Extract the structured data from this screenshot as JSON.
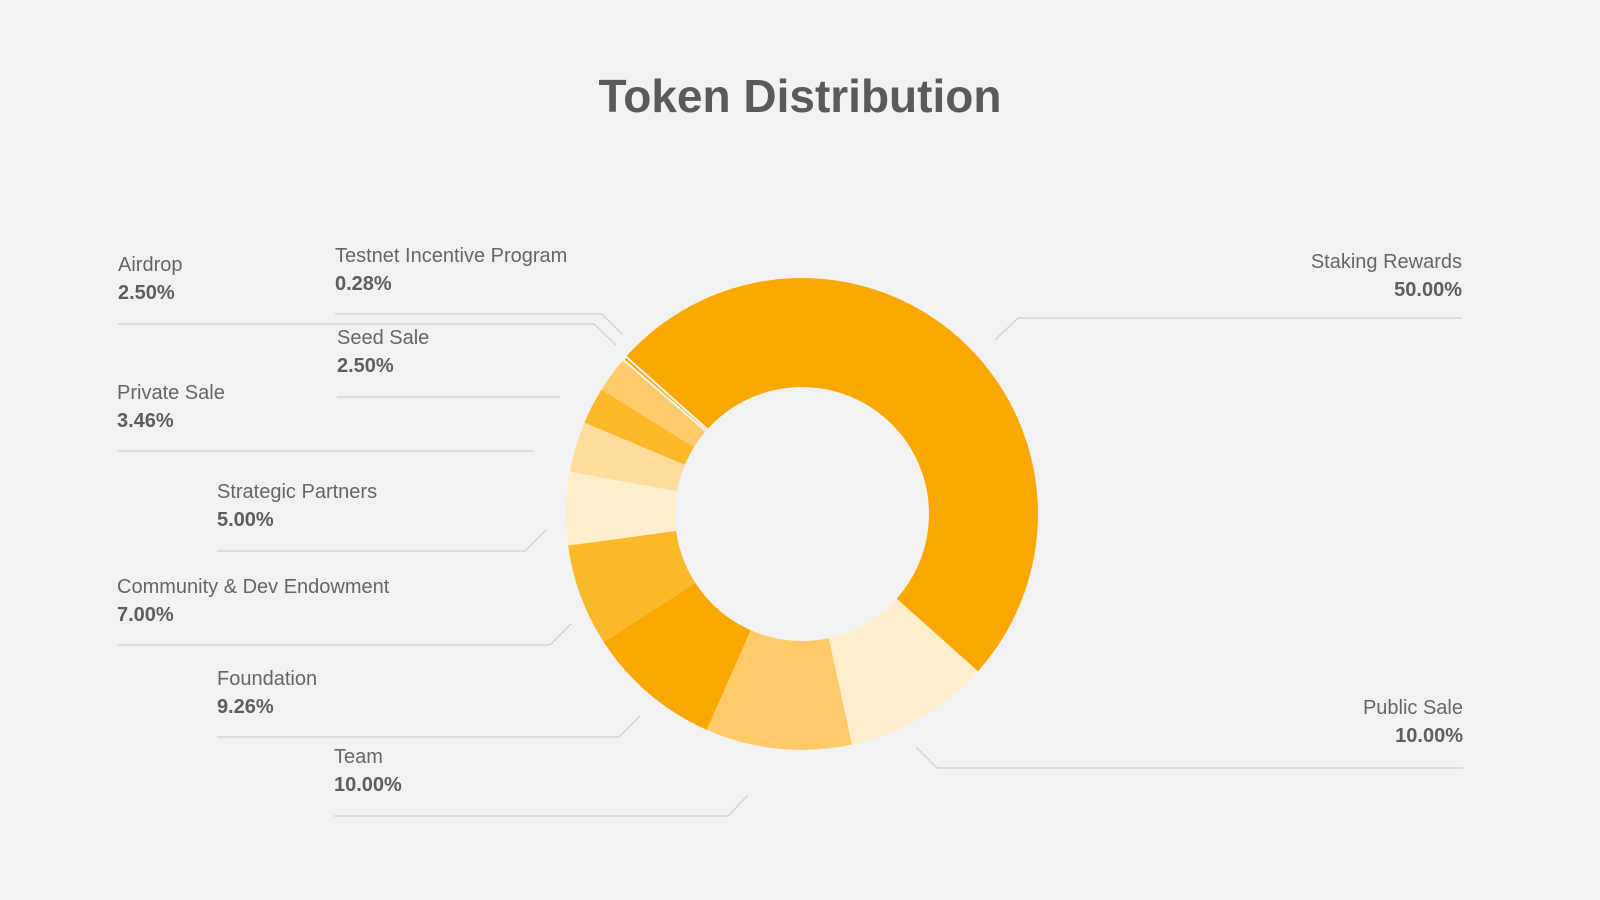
{
  "chart_data": {
    "type": "pie",
    "style": "donut",
    "title": "Token Distribution",
    "slices": [
      {
        "name": "Staking Rewards",
        "value_label": "50.00%",
        "value": 50.0,
        "color": "#FAA700"
      },
      {
        "name": "Public Sale",
        "value_label": "10.00%",
        "value": 10.0,
        "color": "#FFEDCC"
      },
      {
        "name": "Team",
        "value_label": "10.00%",
        "value": 10.0,
        "color": "#FDCB6A"
      },
      {
        "name": "Foundation",
        "value_label": "9.26%",
        "value": 9.26,
        "color": "#FAA700"
      },
      {
        "name": "Community & Dev Endowment",
        "value_label": "7.00%",
        "value": 7.0,
        "color": "#FBB829"
      },
      {
        "name": "Strategic Partners",
        "value_label": "5.00%",
        "value": 5.0,
        "color": "#FFEDCC"
      },
      {
        "name": "Private Sale",
        "value_label": "3.46%",
        "value": 3.46,
        "color": "#FEDC9B"
      },
      {
        "name": "Seed Sale",
        "value_label": "2.50%",
        "value": 2.5,
        "color": "#FBB829"
      },
      {
        "name": "Airdrop",
        "value_label": "2.50%",
        "value": 2.5,
        "color": "#FDCB6A"
      },
      {
        "name": "Testnet Incentive Program",
        "value_label": "0.28%",
        "value": 0.28,
        "color": "#FAA700"
      }
    ],
    "background": "#F2F2F2"
  }
}
